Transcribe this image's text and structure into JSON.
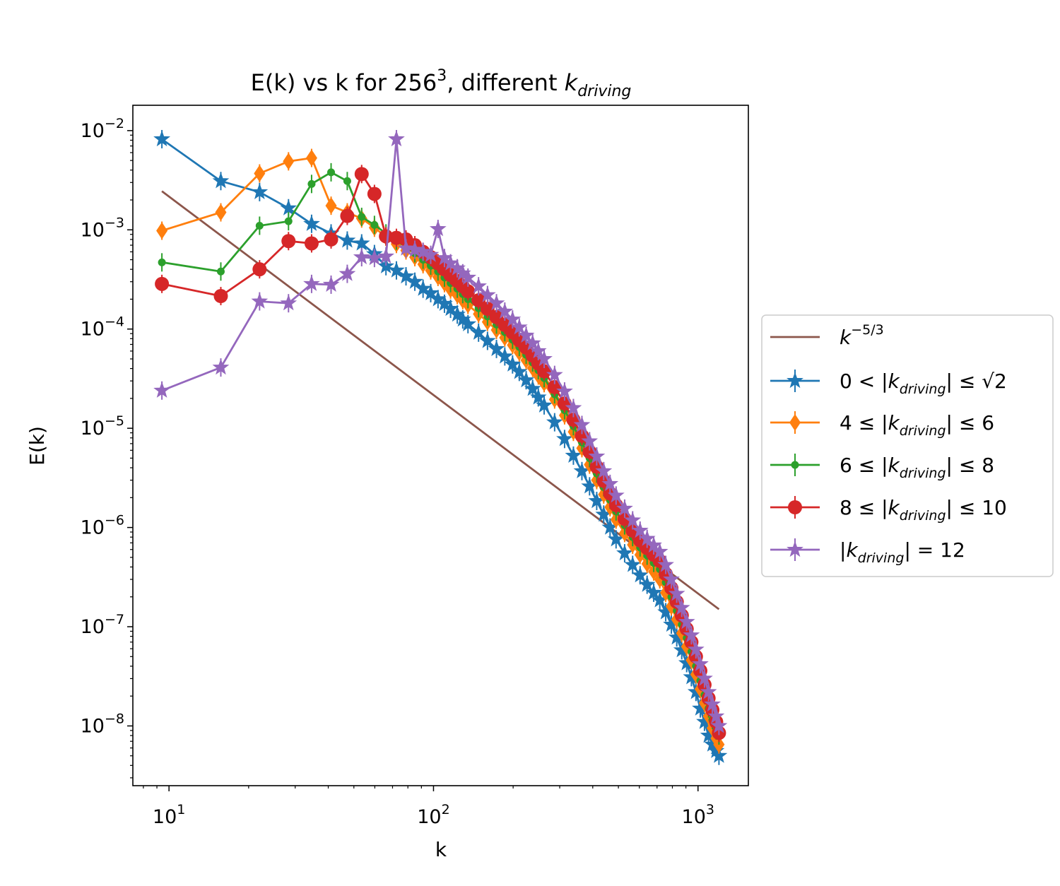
{
  "chart_data": {
    "type": "line",
    "title": "E(k) vs k for 256³, different k_driving",
    "title_parts": {
      "main": "E(k) vs k for 256",
      "sup": "3",
      "mid": ", different ",
      "italic": "k",
      "sub": "driving"
    },
    "xlabel": "k",
    "ylabel": "E(k)",
    "x_scale": "log",
    "y_scale": "log",
    "xlim": [
      7.3,
      1550
    ],
    "ylim": [
      2.5e-09,
      0.018
    ],
    "x_ticks": [
      {
        "value": 10,
        "label": "10",
        "exp": "1"
      },
      {
        "value": 100,
        "label": "10",
        "exp": "2"
      },
      {
        "value": 1000,
        "label": "10",
        "exp": "3"
      }
    ],
    "y_ticks": [
      {
        "value": 0.01,
        "label": "10",
        "exp": "−2"
      },
      {
        "value": 0.001,
        "label": "10",
        "exp": "−3"
      },
      {
        "value": 0.0001,
        "label": "10",
        "exp": "−4"
      },
      {
        "value": 1e-05,
        "label": "10",
        "exp": "−5"
      },
      {
        "value": 1e-06,
        "label": "10",
        "exp": "−6"
      },
      {
        "value": 1e-07,
        "label": "10",
        "exp": "−7"
      },
      {
        "value": 1e-08,
        "label": "10",
        "exp": "−8"
      }
    ],
    "grid": false,
    "legend_position": "outside-right",
    "reference_line": {
      "name": "k^{-5/3}",
      "label_base": "k",
      "label_exp": "−5/3",
      "color": "#8c564b",
      "x": [
        9.4,
        1200
      ],
      "y": [
        0.00245,
        1.5e-07
      ]
    },
    "series": [
      {
        "name": "0 < |k_driving| ≤ √2",
        "legend": {
          "pre": "0 < |",
          "post": "| ≤ √2"
        },
        "color": "#1f77b4",
        "marker": "star",
        "x": [
          9.4,
          15.7,
          22,
          28.3,
          34.6,
          41,
          47.2,
          53.5,
          59.8,
          66.1,
          72.4,
          78.7,
          85,
          91.3,
          97.6,
          104,
          110,
          116,
          123,
          129,
          135,
          148,
          160,
          173,
          186,
          199,
          211,
          224,
          237,
          249,
          262,
          287,
          313,
          338,
          364,
          389,
          414,
          440,
          465,
          490,
          528,
          566,
          604,
          642,
          680,
          717,
          755,
          793,
          831,
          868,
          906,
          944,
          982,
          1020,
          1058,
          1096,
          1133,
          1171,
          1200
        ],
        "y": [
          0.0082,
          0.0031,
          0.0024,
          0.00165,
          0.00115,
          0.00092,
          0.00078,
          0.00073,
          0.00057,
          0.00043,
          0.00039,
          0.00034,
          0.0003,
          0.000255,
          0.00023,
          0.0002,
          0.00018,
          0.00016,
          0.00014,
          0.000125,
          0.000112,
          9.2e-05,
          7.6e-05,
          6.3e-05,
          5.3e-05,
          4.4e-05,
          3.7e-05,
          3.05e-05,
          2.5e-05,
          2.05e-05,
          1.7e-05,
          1.15e-05,
          7.8e-06,
          5.3e-06,
          3.7e-06,
          2.6e-06,
          1.85e-06,
          1.35e-06,
          1e-06,
          7.6e-07,
          5.5e-07,
          4.2e-07,
          3.3e-07,
          2.65e-07,
          2.2e-07,
          1.85e-07,
          1.4e-07,
          1.05e-07,
          7.8e-08,
          5.8e-08,
          4.3e-08,
          3.1e-08,
          2.2e-08,
          1.5e-08,
          1.1e-08,
          8e-09,
          6.5e-09,
          5.6e-09,
          5e-09
        ]
      },
      {
        "name": "4 ≤ |k_driving| ≤ 6",
        "legend": {
          "pre": "4 ≤ |",
          "post": "| ≤ 6"
        },
        "color": "#ff7f0e",
        "marker": "thin_diamond",
        "x": [
          9.4,
          15.7,
          22,
          28.3,
          34.6,
          41,
          47.2,
          53.5,
          59.8,
          66.1,
          72.4,
          78.7,
          85,
          91.3,
          97.6,
          104,
          110,
          116,
          123,
          129,
          135,
          148,
          160,
          173,
          186,
          199,
          211,
          224,
          237,
          249,
          262,
          287,
          313,
          338,
          364,
          389,
          414,
          440,
          465,
          490,
          528,
          566,
          604,
          642,
          680,
          717,
          755,
          793,
          831,
          868,
          906,
          944,
          982,
          1020,
          1058,
          1096,
          1133,
          1171,
          1200
        ],
        "y": [
          0.00098,
          0.0015,
          0.0037,
          0.0049,
          0.0053,
          0.00175,
          0.0015,
          0.0013,
          0.00105,
          0.00085,
          0.00072,
          0.00062,
          0.00053,
          0.00045,
          0.00039,
          0.000335,
          0.00029,
          0.00025,
          0.00022,
          0.000195,
          0.000175,
          0.000142,
          0.000118,
          9.8e-05,
          8.2e-05,
          6.9e-05,
          5.8e-05,
          4.85e-05,
          4.05e-05,
          3.4e-05,
          2.85e-05,
          1.95e-05,
          1.35e-05,
          9.2e-06,
          6.3e-06,
          4.3e-06,
          3e-06,
          2.15e-06,
          1.6e-06,
          1.2e-06,
          8.8e-07,
          6.7e-07,
          5.3e-07,
          4.3e-07,
          3.6e-07,
          3e-07,
          2.2e-07,
          1.6e-07,
          1.18e-07,
          8.6e-08,
          6.3e-08,
          4.6e-08,
          3.3e-08,
          2.35e-08,
          1.7e-08,
          1.25e-08,
          9.5e-09,
          7.5e-09,
          6.5e-09
        ]
      },
      {
        "name": "6 ≤ |k_driving| ≤ 8",
        "legend": {
          "pre": "6 ≤ |",
          "post": "| ≤ 8"
        },
        "color": "#2ca02c",
        "marker": "point",
        "x": [
          9.4,
          15.7,
          22,
          28.3,
          34.6,
          41,
          47.2,
          53.5,
          59.8,
          66.1,
          72.4,
          78.7,
          85,
          91.3,
          97.6,
          104,
          110,
          116,
          123,
          129,
          135,
          148,
          160,
          173,
          186,
          199,
          211,
          224,
          237,
          249,
          262,
          287,
          313,
          338,
          364,
          389,
          414,
          440,
          465,
          490,
          528,
          566,
          604,
          642,
          680,
          717,
          755,
          793,
          831,
          868,
          906,
          944,
          982,
          1020,
          1058,
          1096,
          1133,
          1171,
          1200
        ],
        "y": [
          0.00047,
          0.00038,
          0.0011,
          0.00122,
          0.0029,
          0.0038,
          0.0031,
          0.00135,
          0.00112,
          0.00092,
          0.00078,
          0.00067,
          0.00058,
          0.0005,
          0.000435,
          0.00038,
          0.00033,
          0.00029,
          0.000255,
          0.000225,
          0.0002,
          0.000162,
          0.000134,
          0.000111,
          9.3e-05,
          7.8e-05,
          6.6e-05,
          5.5e-05,
          4.6e-05,
          3.85e-05,
          3.2e-05,
          2.2e-05,
          1.52e-05,
          1.05e-05,
          7.2e-06,
          5e-06,
          3.5e-06,
          2.55e-06,
          1.9e-06,
          1.45e-06,
          1.05e-06,
          8e-07,
          6.3e-07,
          5.2e-07,
          4.4e-07,
          3.8e-07,
          2.8e-07,
          2e-07,
          1.45e-07,
          1.05e-07,
          7.7e-08,
          5.6e-08,
          4e-08,
          2.85e-08,
          2.05e-08,
          1.5e-08,
          1.15e-08,
          9e-09,
          8e-09
        ]
      },
      {
        "name": "8 ≤ |k_driving| ≤ 10",
        "legend": {
          "pre": "8 ≤ |",
          "post": "| ≤ 10"
        },
        "color": "#d62728",
        "marker": "circle",
        "x": [
          9.4,
          15.7,
          22,
          28.3,
          34.6,
          41,
          47.2,
          53.5,
          59.8,
          66.1,
          72.4,
          78.7,
          85,
          91.3,
          97.6,
          104,
          110,
          116,
          123,
          129,
          135,
          148,
          160,
          173,
          186,
          199,
          211,
          224,
          237,
          249,
          262,
          287,
          313,
          338,
          364,
          389,
          414,
          440,
          465,
          490,
          528,
          566,
          604,
          642,
          680,
          717,
          755,
          793,
          831,
          868,
          906,
          944,
          982,
          1020,
          1058,
          1096,
          1133,
          1171,
          1200
        ],
        "y": [
          0.000285,
          0.000215,
          0.0004,
          0.00077,
          0.00073,
          0.0008,
          0.00138,
          0.00365,
          0.0023,
          0.00086,
          0.00083,
          0.0008,
          0.0007,
          0.0006,
          0.00053,
          0.00046,
          0.0004,
          0.00035,
          0.000305,
          0.00027,
          0.00024,
          0.000195,
          0.00016,
          0.000132,
          0.00011,
          9.2e-05,
          7.7e-05,
          6.5e-05,
          5.4e-05,
          4.5e-05,
          3.75e-05,
          2.6e-05,
          1.78e-05,
          1.22e-05,
          8.4e-06,
          5.8e-06,
          4.1e-06,
          2.95e-06,
          2.2e-06,
          1.68e-06,
          1.22e-06,
          9.3e-07,
          7.4e-07,
          6.2e-07,
          5.3e-07,
          4.6e-07,
          3.4e-07,
          2.45e-07,
          1.78e-07,
          1.3e-07,
          9.5e-08,
          7e-08,
          5e-08,
          3.6e-08,
          2.6e-08,
          1.9e-08,
          1.45e-08,
          1.1e-08,
          8.5e-09
        ]
      },
      {
        "name": "|k_driving| = 12",
        "legend": {
          "pre": "|",
          "post": "| = 12"
        },
        "color": "#9467bd",
        "marker": "star",
        "x": [
          9.4,
          15.7,
          22,
          28.3,
          34.6,
          41,
          47.2,
          53.5,
          59.8,
          66.1,
          72.4,
          78.7,
          85,
          91.3,
          97.6,
          104,
          110,
          116,
          123,
          129,
          135,
          148,
          160,
          173,
          186,
          199,
          211,
          224,
          237,
          249,
          262,
          287,
          313,
          338,
          364,
          389,
          414,
          440,
          465,
          490,
          528,
          566,
          604,
          642,
          680,
          717,
          755,
          793,
          831,
          868,
          906,
          944,
          982,
          1020,
          1058,
          1096,
          1133,
          1171,
          1200
        ],
        "y": [
          2.4e-05,
          4.1e-05,
          0.00019,
          0.000182,
          0.000285,
          0.00028,
          0.00036,
          0.00053,
          0.00052,
          0.00054,
          0.0082,
          0.00065,
          0.00063,
          0.0006,
          0.00056,
          0.00102,
          0.00052,
          0.00046,
          0.00041,
          0.000365,
          0.00033,
          0.00027,
          0.00022,
          0.000182,
          0.00015,
          0.000125,
          0.000104,
          8.6e-05,
          7.2e-05,
          6e-05,
          5e-05,
          3.45e-05,
          2.35e-05,
          1.6e-05,
          1.08e-05,
          7.4e-06,
          5.2e-06,
          3.7e-06,
          2.75e-06,
          2.1e-06,
          1.55e-06,
          1.18e-06,
          9.3e-07,
          7.7e-07,
          6.6e-07,
          5.7e-07,
          4.2e-07,
          3e-07,
          2.15e-07,
          1.55e-07,
          1.12e-07,
          8.2e-08,
          5.9e-08,
          4.2e-08,
          3e-08,
          2.2e-08,
          1.65e-08,
          1.25e-08,
          1e-08
        ]
      }
    ]
  }
}
